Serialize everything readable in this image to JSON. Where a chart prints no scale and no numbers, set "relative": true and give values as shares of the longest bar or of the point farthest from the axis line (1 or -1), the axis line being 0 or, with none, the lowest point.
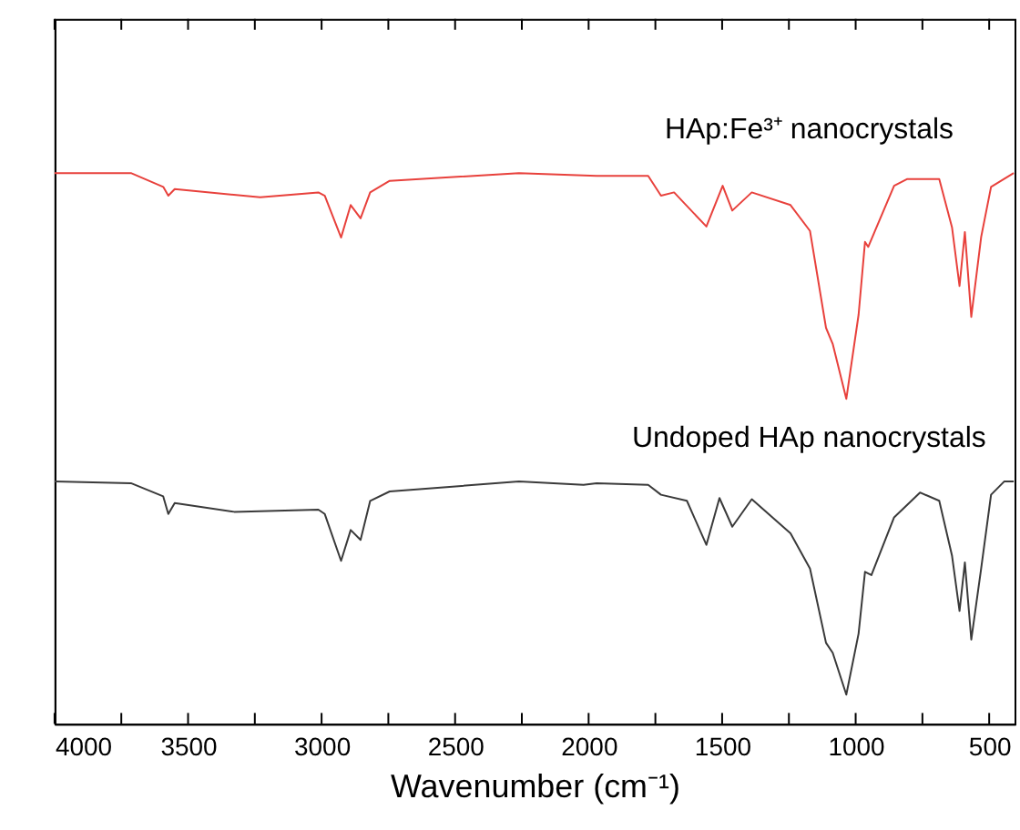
{
  "chart_data": {
    "type": "line",
    "relative": true,
    "xlabel": "Wavenumber (cm⁻¹)",
    "xlim": [
      4000,
      405
    ],
    "xticks": [
      4000,
      {
        "value": 3750,
        "label": null
      },
      3500,
      {
        "value": 3250,
        "label": null
      },
      3000,
      {
        "value": 2750,
        "label": null
      },
      2500,
      {
        "value": 2250,
        "label": null
      },
      2000,
      {
        "value": 1750,
        "label": null
      },
      1500,
      {
        "value": 1250,
        "label": null
      },
      1000,
      {
        "value": 750,
        "label": null
      },
      500
    ],
    "grid": false,
    "legend": false,
    "marker": "none",
    "line_style": "solid",
    "tick_labels": "x",
    "series": [
      {
        "name": "HAp:Fe³⁺ nanocrystals",
        "color": "#e8413c",
        "x": [
          4000,
          3714,
          3593,
          3574,
          3550,
          3230,
          3012,
          2988,
          2927,
          2891,
          2854,
          2818,
          2745,
          2261,
          1970,
          1777,
          1729,
          1680,
          1559,
          1498,
          1462,
          1389,
          1244,
          1171,
          1111,
          1086,
          1035,
          989,
          965,
          953,
          856,
          808,
          687,
          639,
          611,
          591,
          567,
          530,
          493,
          408
        ],
        "values": [
          1.0,
          1.0,
          0.975,
          0.959,
          0.971,
          0.956,
          0.965,
          0.959,
          0.883,
          0.942,
          0.918,
          0.965,
          0.986,
          1.0,
          0.995,
          0.995,
          0.959,
          0.965,
          0.903,
          0.977,
          0.932,
          0.965,
          0.942,
          0.895,
          0.719,
          0.69,
          0.59,
          0.743,
          0.875,
          0.866,
          0.977,
          0.989,
          0.989,
          0.901,
          0.795,
          0.893,
          0.739,
          0.884,
          0.975,
          1.0
        ]
      },
      {
        "name": "Undoped HAp nanocrystals",
        "color": "#3a3a3a",
        "x": [
          4000,
          3714,
          3593,
          3574,
          3550,
          3327,
          3012,
          2988,
          2927,
          2891,
          2854,
          2818,
          2745,
          2261,
          2019,
          1970,
          1777,
          1729,
          1632,
          1559,
          1510,
          1462,
          1389,
          1244,
          1171,
          1111,
          1086,
          1035,
          989,
          965,
          941,
          856,
          759,
          687,
          639,
          611,
          591,
          567,
          530,
          493,
          444,
          408
        ],
        "values": [
          0.44,
          0.437,
          0.413,
          0.381,
          0.401,
          0.385,
          0.389,
          0.381,
          0.296,
          0.352,
          0.334,
          0.405,
          0.422,
          0.44,
          0.434,
          0.437,
          0.434,
          0.416,
          0.405,
          0.325,
          0.41,
          0.358,
          0.408,
          0.346,
          0.282,
          0.147,
          0.129,
          0.053,
          0.164,
          0.276,
          0.27,
          0.375,
          0.42,
          0.405,
          0.305,
          0.205,
          0.293,
          0.153,
          0.282,
          0.416,
          0.44,
          0.44
        ]
      }
    ]
  }
}
